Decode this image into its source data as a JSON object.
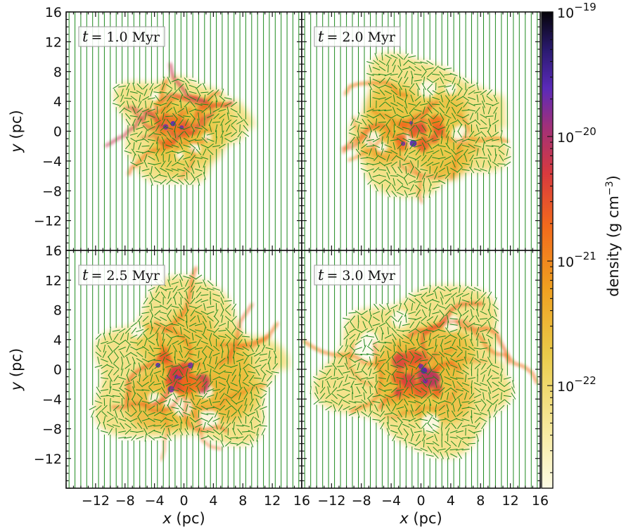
{
  "chart_data": {
    "type": "heatmap",
    "panels": [
      {
        "time_prefix": "t",
        "time_value": "= 1.0 Myr",
        "cloud": {
          "cx": -1.0,
          "cy": 0.5,
          "r": 8.0,
          "core_strength": 0.45,
          "filamentary": true
        },
        "show_ylabel": true,
        "show_xlabel": false
      },
      {
        "time_prefix": "t",
        "time_value": "= 2.0 Myr",
        "cloud": {
          "cx": 0.5,
          "cy": 0.5,
          "r": 10.0,
          "core_strength": 0.55,
          "filamentary": false
        },
        "show_ylabel": false,
        "show_xlabel": false
      },
      {
        "time_prefix": "t",
        "time_value": "= 2.5 Myr",
        "cloud": {
          "cx": 0.0,
          "cy": 0.0,
          "r": 12.0,
          "core_strength": 0.8,
          "filamentary": false
        },
        "show_ylabel": true,
        "show_xlabel": true
      },
      {
        "time_prefix": "t",
        "time_value": "= 3.0 Myr",
        "cloud": {
          "cx": 0.0,
          "cy": 0.0,
          "r": 12.0,
          "core_strength": 0.9,
          "filamentary": false
        },
        "show_ylabel": false,
        "show_xlabel": true
      }
    ],
    "xlim": [
      -16,
      16
    ],
    "ylim": [
      -16,
      16
    ],
    "x_ticks": [
      -12,
      -8,
      -4,
      0,
      4,
      8,
      12,
      16
    ],
    "y_ticks": [
      -12,
      -8,
      -4,
      0,
      4,
      8,
      12,
      16
    ],
    "xlabel_var": "x",
    "xlabel_unit": " (pc)",
    "ylabel_var": "y",
    "ylabel_unit": " (pc)",
    "colorbar": {
      "label": "density (g cm",
      "label_exp": "−3",
      "label_close": ")",
      "scale": "log",
      "range": [
        1.5e-23,
        1e-19
      ],
      "ticks": [
        {
          "value": 1e-19,
          "base": "10",
          "exp": "−19"
        },
        {
          "value": 1e-20,
          "base": "10",
          "exp": "−20"
        },
        {
          "value": 1e-21,
          "base": "10",
          "exp": "−21"
        },
        {
          "value": 1e-22,
          "base": "10",
          "exp": "−22"
        }
      ],
      "colormap": "inferno_r-like (light yellow → orange → red → purple → black)"
    },
    "vector_field": {
      "color": "#1f8a1f",
      "description": "magnetic field direction segments, uniform vertical outside cloud, tangled inside"
    }
  }
}
